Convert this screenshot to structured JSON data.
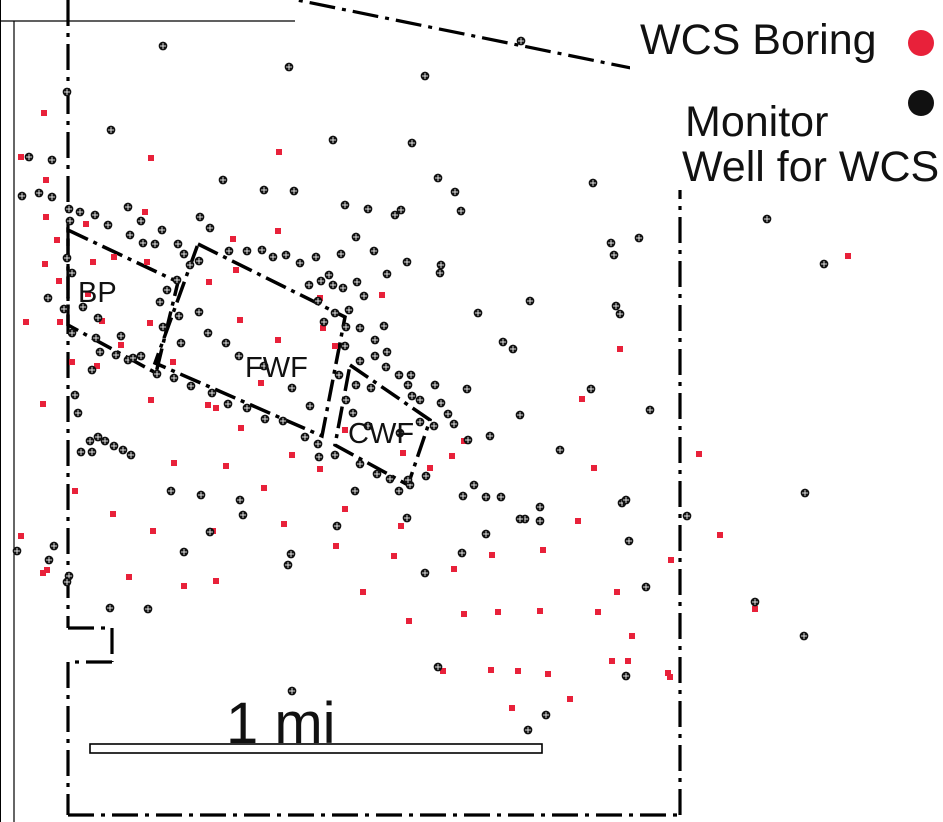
{
  "legend": {
    "boring_label": "WCS Boring",
    "well_label_line1": "Monitor",
    "well_label_line2": "Well for WCS",
    "boring_color": "#e8213a",
    "well_color": "#111111"
  },
  "zones": {
    "bp": "BP",
    "fwf": "FWF",
    "cwf": "CWF"
  },
  "scale_bar": {
    "label": "1 mi"
  }
}
